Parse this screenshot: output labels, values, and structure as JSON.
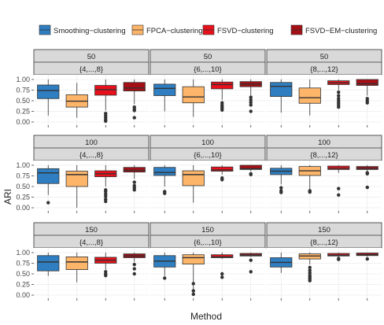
{
  "chart_data": {
    "type": "boxplot",
    "ylabel": "ARI",
    "xlabel": "Method",
    "ylim": [
      0,
      1
    ],
    "yticks": [
      0.0,
      0.25,
      0.5,
      0.75,
      1.0
    ],
    "ytick_labels": [
      "0.00",
      "0.25",
      "0.50",
      "0.75",
      "1.00"
    ],
    "legend_position": "top",
    "grid": true,
    "methods": [
      {
        "name": "Smoothing−clustering",
        "color": "#2E7EC1"
      },
      {
        "name": "FPCA−clustering",
        "color": "#FDB56A"
      },
      {
        "name": "FSVD−clustering",
        "color": "#E8111B"
      },
      {
        "name": "FSVD−EM−clustering",
        "color": "#A50F15"
      }
    ],
    "row_strips": [
      "50",
      "100",
      "150"
    ],
    "col_strips": [
      "{4,...,8}",
      "{6,...,10}",
      "{8,...,12}"
    ],
    "panels": [
      {
        "row": "50",
        "col": "{4,...,8}",
        "boxes": [
          {
            "whislo": 0.15,
            "q1": 0.55,
            "med": 0.74,
            "q3": 0.87,
            "whishi": 1.0,
            "outliers": []
          },
          {
            "whislo": 0.1,
            "q1": 0.35,
            "med": 0.49,
            "q3": 0.64,
            "whishi": 0.92,
            "outliers": []
          },
          {
            "whislo": 0.27,
            "q1": 0.63,
            "med": 0.76,
            "q3": 0.86,
            "whishi": 1.0,
            "outliers": [
              0.2,
              0.15,
              0.1,
              0.05,
              0.02
            ]
          },
          {
            "whislo": 0.42,
            "q1": 0.73,
            "med": 0.8,
            "q3": 0.93,
            "whishi": 1.0,
            "outliers": [
              0.35,
              0.3,
              0.27,
              0.1
            ]
          }
        ]
      },
      {
        "row": "50",
        "col": "{6,...,10}",
        "boxes": [
          {
            "whislo": 0.25,
            "q1": 0.62,
            "med": 0.79,
            "q3": 0.89,
            "whishi": 1.0,
            "outliers": []
          },
          {
            "whislo": 0.12,
            "q1": 0.45,
            "med": 0.59,
            "q3": 0.83,
            "whishi": 1.0,
            "outliers": []
          },
          {
            "whislo": 0.52,
            "q1": 0.78,
            "med": 0.88,
            "q3": 0.94,
            "whishi": 1.0,
            "outliers": [
              0.45,
              0.4,
              0.36,
              0.32,
              0.28
            ]
          },
          {
            "whislo": 0.62,
            "q1": 0.83,
            "med": 0.89,
            "q3": 0.95,
            "whishi": 1.0,
            "outliers": [
              0.58,
              0.52,
              0.46,
              0.4,
              0.25
            ]
          }
        ]
      },
      {
        "row": "50",
        "col": "{8,...,12}",
        "boxes": [
          {
            "whislo": 0.22,
            "q1": 0.6,
            "med": 0.84,
            "q3": 0.93,
            "whishi": 1.0,
            "outliers": []
          },
          {
            "whislo": 0.15,
            "q1": 0.44,
            "med": 0.57,
            "q3": 0.8,
            "whishi": 1.0,
            "outliers": []
          },
          {
            "whislo": 0.75,
            "q1": 0.88,
            "med": 0.92,
            "q3": 0.97,
            "whishi": 1.0,
            "outliers": [
              0.7,
              0.62,
              0.55,
              0.5,
              0.45,
              0.4,
              0.35
            ]
          },
          {
            "whislo": 0.62,
            "q1": 0.86,
            "med": 0.9,
            "q3": 1.0,
            "whishi": 1.0,
            "outliers": [
              0.55,
              0.5,
              0.45
            ]
          }
        ]
      },
      {
        "row": "100",
        "col": "{4,...,8}",
        "boxes": [
          {
            "whislo": 0.3,
            "q1": 0.57,
            "med": 0.82,
            "q3": 0.92,
            "whishi": 1.0,
            "outliers": [
              0.12
            ]
          },
          {
            "whislo": 0.0,
            "q1": 0.5,
            "med": 0.78,
            "q3": 0.86,
            "whishi": 1.0,
            "outliers": []
          },
          {
            "whislo": 0.5,
            "q1": 0.73,
            "med": 0.8,
            "q3": 0.87,
            "whishi": 1.0,
            "outliers": [
              0.42,
              0.38,
              0.32,
              0.27,
              0.2,
              0.15
            ]
          },
          {
            "whislo": 0.68,
            "q1": 0.84,
            "med": 0.88,
            "q3": 0.95,
            "whishi": 1.0,
            "outliers": [
              0.6,
              0.52,
              0.47,
              0.42
            ]
          }
        ]
      },
      {
        "row": "100",
        "col": "{6,...,10}",
        "boxes": [
          {
            "whislo": 0.5,
            "q1": 0.76,
            "med": 0.83,
            "q3": 0.95,
            "whishi": 1.0,
            "outliers": [
              0.38,
              0.34
            ]
          },
          {
            "whislo": 0.12,
            "q1": 0.52,
            "med": 0.78,
            "q3": 0.87,
            "whishi": 1.0,
            "outliers": []
          },
          {
            "whislo": 0.78,
            "q1": 0.86,
            "med": 0.89,
            "q3": 0.96,
            "whishi": 1.0,
            "outliers": [
              0.7,
              0.66
            ]
          },
          {
            "whislo": 0.86,
            "q1": 0.9,
            "med": 0.92,
            "q3": 1.0,
            "whishi": 1.0,
            "outliers": [
              0.8,
              0.78
            ]
          }
        ]
      },
      {
        "row": "100",
        "col": "{8,...,12}",
        "boxes": [
          {
            "whislo": 0.55,
            "q1": 0.78,
            "med": 0.86,
            "q3": 0.93,
            "whishi": 1.0,
            "outliers": [
              0.47,
              0.4,
              0.36
            ]
          },
          {
            "whislo": 0.42,
            "q1": 0.76,
            "med": 0.87,
            "q3": 0.97,
            "whishi": 1.0,
            "outliers": [
              0.4,
              0.37
            ]
          },
          {
            "whislo": 0.82,
            "q1": 0.9,
            "med": 0.93,
            "q3": 0.98,
            "whishi": 1.0,
            "outliers": [
              0.45,
              0.3
            ]
          },
          {
            "whislo": 0.85,
            "q1": 0.9,
            "med": 0.93,
            "q3": 0.97,
            "whishi": 1.0,
            "outliers": [
              0.82,
              0.8,
              0.48
            ]
          }
        ]
      },
      {
        "row": "150",
        "col": "{4,...,8}",
        "boxes": [
          {
            "whislo": 0.45,
            "q1": 0.57,
            "med": 0.78,
            "q3": 0.93,
            "whishi": 1.0,
            "outliers": []
          },
          {
            "whislo": 0.3,
            "q1": 0.6,
            "med": 0.78,
            "q3": 0.9,
            "whishi": 1.0,
            "outliers": []
          },
          {
            "whislo": 0.6,
            "q1": 0.75,
            "med": 0.82,
            "q3": 0.89,
            "whishi": 1.0,
            "outliers": [
              0.55,
              0.5,
              0.46
            ]
          },
          {
            "whislo": 0.78,
            "q1": 0.88,
            "med": 0.92,
            "q3": 0.97,
            "whishi": 1.0,
            "outliers": [
              0.72,
              0.62,
              0.5
            ]
          }
        ]
      },
      {
        "row": "150",
        "col": "{6,...,10}",
        "boxes": [
          {
            "whislo": 0.45,
            "q1": 0.66,
            "med": 0.8,
            "q3": 0.93,
            "whishi": 1.0,
            "outliers": [
              0.4
            ]
          },
          {
            "whislo": 0.0,
            "q1": 0.73,
            "med": 0.88,
            "q3": 0.95,
            "whishi": 1.0,
            "outliers": [
              0.27,
              0.1,
              0.02
            ]
          },
          {
            "whislo": 0.85,
            "q1": 0.88,
            "med": 0.9,
            "q3": 0.95,
            "whishi": 1.0,
            "outliers": [
              0.5,
              0.42
            ]
          },
          {
            "whislo": 0.9,
            "q1": 0.92,
            "med": 0.94,
            "q3": 0.98,
            "whishi": 1.0,
            "outliers": [
              0.82,
              0.55
            ]
          }
        ]
      },
      {
        "row": "150",
        "col": "{8,...,12}",
        "boxes": [
          {
            "whislo": 0.52,
            "q1": 0.66,
            "med": 0.77,
            "q3": 0.88,
            "whishi": 1.0,
            "outliers": []
          },
          {
            "whislo": 0.72,
            "q1": 0.85,
            "med": 0.92,
            "q3": 0.97,
            "whishi": 1.0,
            "outliers": [
              0.65,
              0.58,
              0.52,
              0.46,
              0.42,
              0.38,
              0.34
            ]
          },
          {
            "whislo": 0.88,
            "q1": 0.92,
            "med": 0.94,
            "q3": 0.98,
            "whishi": 1.0,
            "outliers": [
              0.86,
              0.84
            ]
          },
          {
            "whislo": 0.9,
            "q1": 0.93,
            "med": 0.95,
            "q3": 0.99,
            "whishi": 1.0,
            "outliers": [
              0.85
            ]
          }
        ]
      }
    ]
  }
}
